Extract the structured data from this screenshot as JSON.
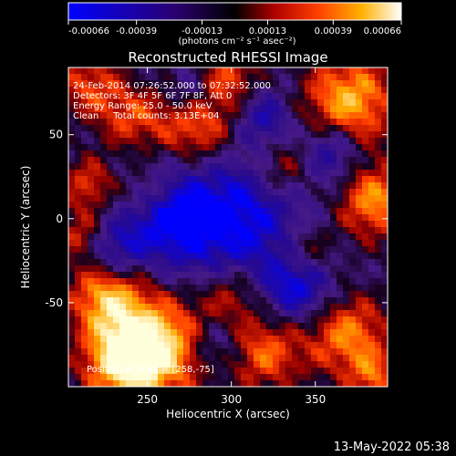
{
  "colorbar": {
    "ticks": [
      "-0.00066",
      "-0.00039",
      "-0.00013",
      "0.00013",
      "0.00039",
      "0.00066"
    ],
    "tick_values": [
      -0.00066,
      -0.00039,
      -0.00013,
      0.00013,
      0.00039,
      0.00066
    ],
    "range": [
      -0.00066,
      0.00066
    ],
    "unit_label": "(photons cm⁻² s⁻¹ asec⁻²)",
    "colormap": [
      "#0000ff",
      "#000000",
      "#ff0000",
      "#ffa000",
      "#ffffff"
    ]
  },
  "chart_data": {
    "type": "heatmap",
    "title": "Reconstructed RHESSI Image",
    "xlabel": "Heliocentric X (arcsec)",
    "ylabel": "Heliocentric Y (arcsec)",
    "xlim": [
      203,
      393
    ],
    "ylim": [
      -100,
      90
    ],
    "xticks": [
      250,
      300,
      350
    ],
    "yticks": [
      -50,
      0,
      50
    ],
    "zlim": [
      -0.00066,
      0.00066
    ],
    "annotations": {
      "time_range": "24-Feb-2014 07:26:52.000 to 07:32:52.000",
      "detectors": "Detectors: 3F 4F 5F 6F 7F 8F, Att 0",
      "energy": "Energy Range: 25.0 - 50.0 keV",
      "method_counts": "Clean     Total counts: 3.13E+04",
      "peak": "Position of Peak = [258,-75]"
    },
    "peak": [
      258,
      -75
    ]
  },
  "footer": {
    "date": "13-May-2022 05:38"
  }
}
